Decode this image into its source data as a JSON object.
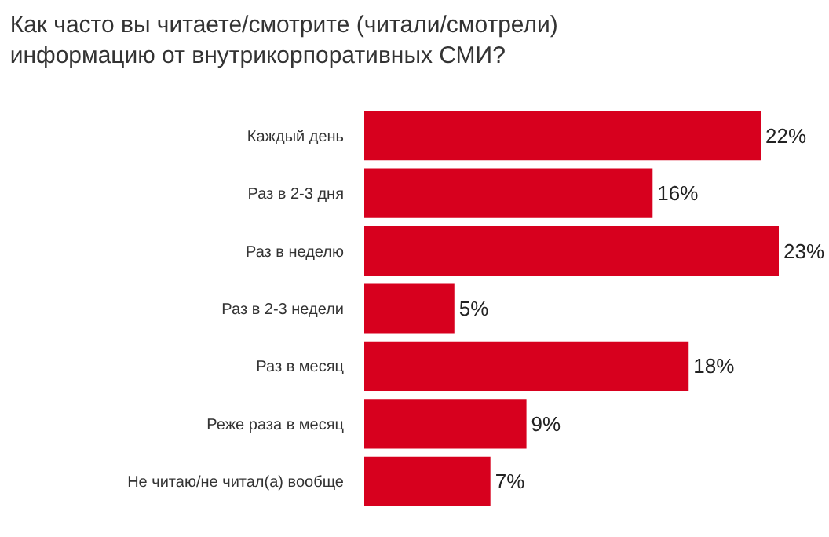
{
  "chart_data": {
    "type": "bar",
    "orientation": "horizontal",
    "title": "Как часто вы читаете/смотрите (читали/смотрели)\nинформацию от внутрикорпоративных СМИ?",
    "categories": [
      "Каждый день",
      "Раз в 2-3 дня",
      "Раз в неделю",
      "Раз в 2-3 недели",
      "Раз в месяц",
      "Реже раза в месяц",
      "Не читаю/не читал(а) вообще"
    ],
    "values": [
      22,
      16,
      23,
      5,
      18,
      9,
      7
    ],
    "value_labels": [
      "22%",
      "16%",
      "23%",
      "5%",
      "18%",
      "9%",
      "7%"
    ],
    "color": "#d7001e"
  }
}
